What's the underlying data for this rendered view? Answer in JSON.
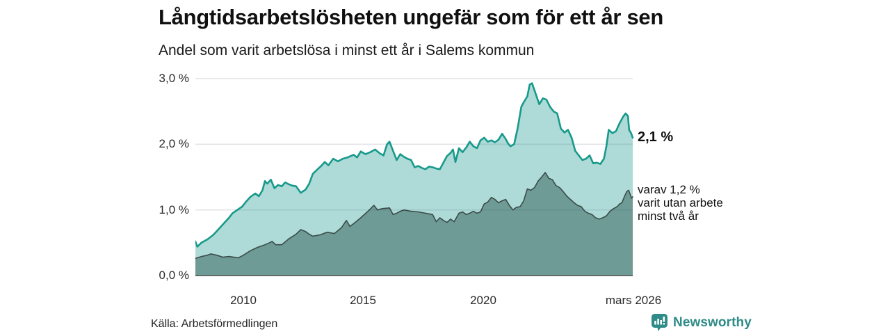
{
  "header": {
    "title": "Långtidsarbetslösheten ungefär som för ett år sen",
    "subtitle": "Andel som varit arbetslösa i minst ett år i Salems kommun"
  },
  "chart_data": {
    "type": "area",
    "title": "Långtidsarbetslösheten ungefär som för ett år sen",
    "subtitle": "Andel som varit arbetslösa i minst ett år i Salems kommun",
    "x_axis": {
      "range": [
        2008.0,
        2026.25
      ],
      "ticks": [
        {
          "t": 2010,
          "label": "2010"
        },
        {
          "t": 2015,
          "label": "2015"
        },
        {
          "t": 2020,
          "label": "2020"
        },
        {
          "t": 2026.25,
          "label": "mars 2026"
        }
      ]
    },
    "y_axis": {
      "range": [
        0,
        3.0
      ],
      "unit": "%",
      "grid": true,
      "ticks": [
        {
          "v": 3.0,
          "label": "3,0 %"
        },
        {
          "v": 2.0,
          "label": "2,0 %"
        },
        {
          "v": 1.0,
          "label": "1,0 %"
        },
        {
          "v": 0.0,
          "label": "0,0 %"
        }
      ]
    },
    "colors": {
      "series1_line": "#18998b",
      "series1_fill": "rgba(24,153,139,0.35)",
      "series2_line": "#3b4b48",
      "series2_fill": "rgba(33,77,70,0.45)",
      "gridline": "#e4e4e9",
      "baseline": "#4a4a4a"
    },
    "series": [
      {
        "name": "Arbetslösa minst ett år",
        "last_value": 2.1,
        "points": [
          [
            2008.0,
            0.52
          ],
          [
            2008.08,
            0.44
          ],
          [
            2008.25,
            0.5
          ],
          [
            2008.5,
            0.55
          ],
          [
            2008.75,
            0.62
          ],
          [
            2009.0,
            0.72
          ],
          [
            2009.2,
            0.8
          ],
          [
            2009.4,
            0.88
          ],
          [
            2009.55,
            0.95
          ],
          [
            2009.75,
            1.0
          ],
          [
            2009.95,
            1.05
          ],
          [
            2010.1,
            1.12
          ],
          [
            2010.3,
            1.2
          ],
          [
            2010.5,
            1.25
          ],
          [
            2010.65,
            1.21
          ],
          [
            2010.8,
            1.3
          ],
          [
            2010.9,
            1.44
          ],
          [
            2011.0,
            1.4
          ],
          [
            2011.15,
            1.46
          ],
          [
            2011.3,
            1.33
          ],
          [
            2011.45,
            1.38
          ],
          [
            2011.6,
            1.36
          ],
          [
            2011.75,
            1.42
          ],
          [
            2011.9,
            1.39
          ],
          [
            2012.05,
            1.37
          ],
          [
            2012.2,
            1.36
          ],
          [
            2012.4,
            1.26
          ],
          [
            2012.6,
            1.31
          ],
          [
            2012.75,
            1.4
          ],
          [
            2012.9,
            1.55
          ],
          [
            2013.1,
            1.62
          ],
          [
            2013.25,
            1.67
          ],
          [
            2013.4,
            1.73
          ],
          [
            2013.55,
            1.68
          ],
          [
            2013.75,
            1.78
          ],
          [
            2013.95,
            1.74
          ],
          [
            2014.15,
            1.78
          ],
          [
            2014.35,
            1.8
          ],
          [
            2014.6,
            1.84
          ],
          [
            2014.75,
            1.8
          ],
          [
            2014.9,
            1.89
          ],
          [
            2015.1,
            1.85
          ],
          [
            2015.3,
            1.88
          ],
          [
            2015.5,
            1.92
          ],
          [
            2015.7,
            1.86
          ],
          [
            2015.85,
            1.83
          ],
          [
            2016.0,
            2.0
          ],
          [
            2016.1,
            2.04
          ],
          [
            2016.25,
            1.9
          ],
          [
            2016.4,
            1.76
          ],
          [
            2016.55,
            1.85
          ],
          [
            2016.7,
            1.81
          ],
          [
            2016.85,
            1.78
          ],
          [
            2017.0,
            1.76
          ],
          [
            2017.15,
            1.65
          ],
          [
            2017.3,
            1.67
          ],
          [
            2017.45,
            1.64
          ],
          [
            2017.6,
            1.62
          ],
          [
            2017.75,
            1.66
          ],
          [
            2017.9,
            1.65
          ],
          [
            2018.05,
            1.63
          ],
          [
            2018.2,
            1.62
          ],
          [
            2018.35,
            1.72
          ],
          [
            2018.5,
            1.82
          ],
          [
            2018.65,
            1.87
          ],
          [
            2018.75,
            1.92
          ],
          [
            2018.85,
            1.73
          ],
          [
            2019.0,
            1.94
          ],
          [
            2019.15,
            1.88
          ],
          [
            2019.3,
            1.95
          ],
          [
            2019.45,
            2.04
          ],
          [
            2019.6,
            1.97
          ],
          [
            2019.75,
            1.94
          ],
          [
            2019.9,
            2.06
          ],
          [
            2020.05,
            2.1
          ],
          [
            2020.2,
            2.04
          ],
          [
            2020.35,
            2.06
          ],
          [
            2020.5,
            2.03
          ],
          [
            2020.65,
            2.07
          ],
          [
            2020.8,
            2.16
          ],
          [
            2020.95,
            2.08
          ],
          [
            2021.05,
            2.01
          ],
          [
            2021.15,
            1.97
          ],
          [
            2021.3,
            2.0
          ],
          [
            2021.45,
            2.25
          ],
          [
            2021.6,
            2.57
          ],
          [
            2021.7,
            2.64
          ],
          [
            2021.85,
            2.73
          ],
          [
            2021.95,
            2.91
          ],
          [
            2022.05,
            2.93
          ],
          [
            2022.2,
            2.77
          ],
          [
            2022.35,
            2.61
          ],
          [
            2022.5,
            2.7
          ],
          [
            2022.65,
            2.68
          ],
          [
            2022.8,
            2.57
          ],
          [
            2022.95,
            2.5
          ],
          [
            2023.1,
            2.47
          ],
          [
            2023.25,
            2.24
          ],
          [
            2023.4,
            2.18
          ],
          [
            2023.55,
            2.22
          ],
          [
            2023.7,
            2.1
          ],
          [
            2023.85,
            1.9
          ],
          [
            2024.0,
            1.83
          ],
          [
            2024.15,
            1.76
          ],
          [
            2024.3,
            1.78
          ],
          [
            2024.45,
            1.83
          ],
          [
            2024.6,
            1.71
          ],
          [
            2024.75,
            1.72
          ],
          [
            2024.9,
            1.7
          ],
          [
            2025.05,
            1.78
          ],
          [
            2025.15,
            1.97
          ],
          [
            2025.25,
            2.22
          ],
          [
            2025.4,
            2.17
          ],
          [
            2025.55,
            2.2
          ],
          [
            2025.7,
            2.32
          ],
          [
            2025.85,
            2.42
          ],
          [
            2025.95,
            2.47
          ],
          [
            2026.05,
            2.43
          ],
          [
            2026.1,
            2.22
          ],
          [
            2026.18,
            2.17
          ],
          [
            2026.25,
            2.1
          ]
        ]
      },
      {
        "name": "Varav utan arbete minst två år",
        "last_value": 1.2,
        "points": [
          [
            2008.0,
            0.26
          ],
          [
            2008.25,
            0.29
          ],
          [
            2008.5,
            0.31
          ],
          [
            2008.65,
            0.33
          ],
          [
            2008.9,
            0.31
          ],
          [
            2009.15,
            0.28
          ],
          [
            2009.4,
            0.29
          ],
          [
            2009.6,
            0.28
          ],
          [
            2009.8,
            0.27
          ],
          [
            2010.0,
            0.31
          ],
          [
            2010.3,
            0.38
          ],
          [
            2010.6,
            0.43
          ],
          [
            2010.9,
            0.47
          ],
          [
            2011.1,
            0.5
          ],
          [
            2011.2,
            0.52
          ],
          [
            2011.35,
            0.47
          ],
          [
            2011.6,
            0.47
          ],
          [
            2011.9,
            0.56
          ],
          [
            2012.2,
            0.63
          ],
          [
            2012.4,
            0.7
          ],
          [
            2012.6,
            0.67
          ],
          [
            2012.75,
            0.63
          ],
          [
            2012.9,
            0.6
          ],
          [
            2013.2,
            0.62
          ],
          [
            2013.5,
            0.66
          ],
          [
            2013.8,
            0.64
          ],
          [
            2014.1,
            0.73
          ],
          [
            2014.3,
            0.84
          ],
          [
            2014.45,
            0.75
          ],
          [
            2014.6,
            0.79
          ],
          [
            2014.9,
            0.88
          ],
          [
            2015.2,
            0.98
          ],
          [
            2015.45,
            1.07
          ],
          [
            2015.6,
            1.0
          ],
          [
            2015.8,
            1.02
          ],
          [
            2016.1,
            1.03
          ],
          [
            2016.25,
            0.93
          ],
          [
            2016.4,
            0.95
          ],
          [
            2016.55,
            0.98
          ],
          [
            2016.7,
            1.0
          ],
          [
            2017.0,
            0.98
          ],
          [
            2017.3,
            0.97
          ],
          [
            2017.6,
            0.95
          ],
          [
            2017.9,
            0.93
          ],
          [
            2018.05,
            0.82
          ],
          [
            2018.2,
            0.88
          ],
          [
            2018.35,
            0.84
          ],
          [
            2018.5,
            0.81
          ],
          [
            2018.65,
            0.86
          ],
          [
            2018.8,
            0.82
          ],
          [
            2019.0,
            0.95
          ],
          [
            2019.15,
            0.97
          ],
          [
            2019.3,
            0.93
          ],
          [
            2019.45,
            0.95
          ],
          [
            2019.6,
            0.98
          ],
          [
            2019.75,
            0.95
          ],
          [
            2019.9,
            0.97
          ],
          [
            2020.05,
            1.09
          ],
          [
            2020.2,
            1.12
          ],
          [
            2020.35,
            1.19
          ],
          [
            2020.5,
            1.16
          ],
          [
            2020.65,
            1.11
          ],
          [
            2020.8,
            1.14
          ],
          [
            2020.95,
            1.16
          ],
          [
            2021.1,
            1.07
          ],
          [
            2021.25,
            1.0
          ],
          [
            2021.4,
            1.04
          ],
          [
            2021.55,
            1.05
          ],
          [
            2021.7,
            1.14
          ],
          [
            2021.85,
            1.32
          ],
          [
            2022.0,
            1.3
          ],
          [
            2022.15,
            1.34
          ],
          [
            2022.3,
            1.44
          ],
          [
            2022.45,
            1.5
          ],
          [
            2022.6,
            1.57
          ],
          [
            2022.75,
            1.48
          ],
          [
            2022.9,
            1.46
          ],
          [
            2023.05,
            1.37
          ],
          [
            2023.2,
            1.34
          ],
          [
            2023.35,
            1.28
          ],
          [
            2023.5,
            1.21
          ],
          [
            2023.65,
            1.16
          ],
          [
            2023.8,
            1.11
          ],
          [
            2023.95,
            1.07
          ],
          [
            2024.1,
            1.05
          ],
          [
            2024.25,
            0.98
          ],
          [
            2024.4,
            0.95
          ],
          [
            2024.55,
            0.93
          ],
          [
            2024.7,
            0.88
          ],
          [
            2024.85,
            0.86
          ],
          [
            2025.0,
            0.88
          ],
          [
            2025.15,
            0.91
          ],
          [
            2025.3,
            0.98
          ],
          [
            2025.45,
            1.02
          ],
          [
            2025.6,
            1.05
          ],
          [
            2025.7,
            1.09
          ],
          [
            2025.8,
            1.11
          ],
          [
            2025.9,
            1.2
          ],
          [
            2026.0,
            1.28
          ],
          [
            2026.08,
            1.3
          ],
          [
            2026.15,
            1.23
          ],
          [
            2026.2,
            1.18
          ],
          [
            2026.25,
            1.2
          ]
        ]
      }
    ],
    "annotations": {
      "total_label": "2,1 %",
      "subset_line1": "varav 1,2 %",
      "subset_line2": "varit utan arbete",
      "subset_line3": "minst två år"
    },
    "legend_position": "none"
  },
  "source": {
    "label": "Källa: Arbetsförmedlingen"
  },
  "branding": {
    "name": "Newsworthy",
    "color": "#2e8b87",
    "icon": "bar-chart-speech-bubble-icon"
  }
}
